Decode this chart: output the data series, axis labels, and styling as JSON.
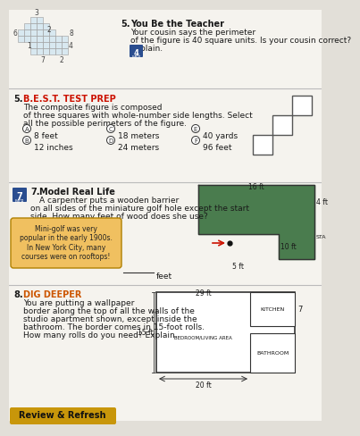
{
  "bg_color": "#e2dfd8",
  "white_bg": "#f5f3ee",
  "section5_bold": "You Be the Teacher",
  "section5_text1": "Your cousin says the perimeter",
  "section5_text2": "of the figure is 40 square units. Is your cousin correct?",
  "section5_text3": "Explain.",
  "section6_bold": "B.E.S.T. TEST PREP",
  "section6_bold_color": "#cc1100",
  "section6_text1": "The composite figure is composed",
  "section6_text2": "of three squares with whole-number side lengths. Select",
  "section6_text3": "all the possible perimeters of the figure.",
  "ans_row1": [
    [
      "A",
      "8 feet"
    ],
    [
      "C",
      "18 meters"
    ],
    [
      "E",
      "40 yards"
    ]
  ],
  "ans_row2": [
    [
      "B",
      "12 inches"
    ],
    [
      "D",
      "24 meters"
    ],
    [
      "F",
      "96 feet"
    ]
  ],
  "section7_bold": "Model Real Life",
  "section7_text1": "A carpenter puts a wooden barrier",
  "section7_text2": "on all sides of the miniature golf hole except the start",
  "section7_text3": "side. How many feet of wood does she use?",
  "funfact": "Mini-golf was very\npopular in the early 1900s.\nIn New York City, many\ncourses were on rooftops!",
  "funfact_bg": "#f0c060",
  "golf_green": "#4a7c4e",
  "section8_bold": "DIG DEEPER",
  "section8_bold_color": "#cc5500",
  "section8_text1": "You are putting a wallpaper",
  "section8_text2": "border along the top of all the walls of the",
  "section8_text3": "studio apartment shown, except inside the",
  "section8_text4": "bathroom. The border comes in 15-foot rolls.",
  "section8_text5": "How many rolls do you need? Explain.",
  "review_text": "Review & Refresh",
  "review_bg": "#c8960a",
  "icon_blue": "#2a4d8f",
  "text_dark": "#1a1a1a",
  "line_color": "#bbbbbb",
  "dim16": "16 ft",
  "dim4": "4 ft",
  "dim10": "10 ft",
  "dim5": "5 ft",
  "dim29": "29 ft",
  "dim15": "15 ft",
  "dim20": "20 ft"
}
